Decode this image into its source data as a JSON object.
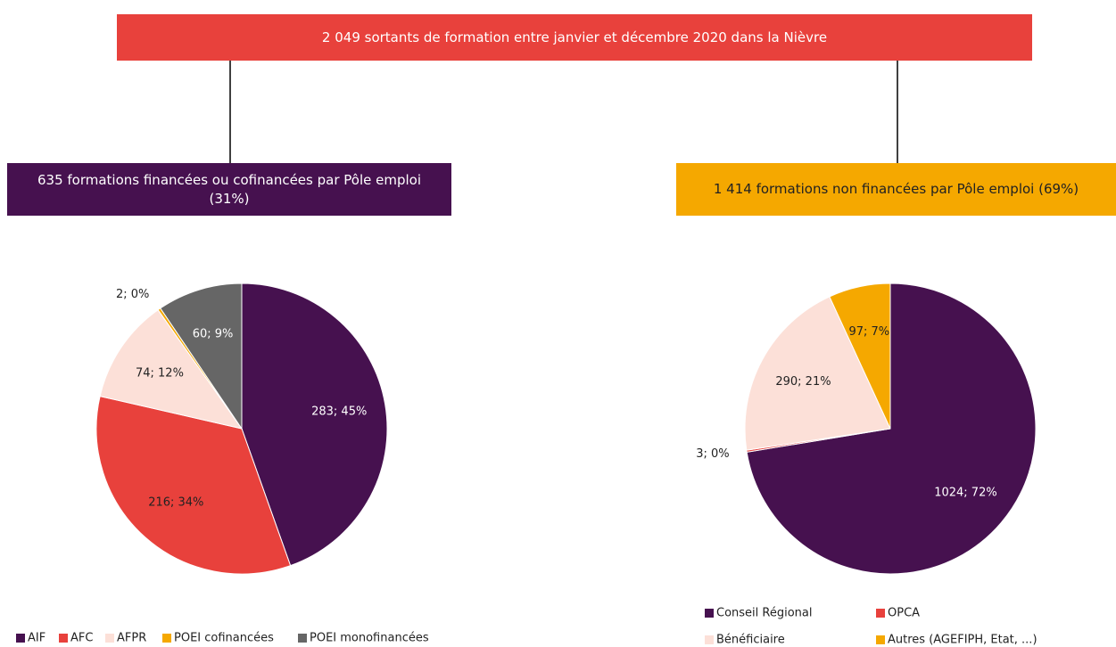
{
  "header": {
    "title": "2 049 sortants de formation entre janvier et décembre 2020 dans la Nièvre",
    "left_box": "635 formations financées ou cofinancées par Pôle emploi (31%)",
    "right_box": "1 414 formations non financées par Pôle emploi (69%)"
  },
  "chart_data": [
    {
      "type": "pie",
      "categories": [
        "AIF",
        "AFC",
        "AFPR",
        "POEI cofinancées",
        "POEI monofinancées"
      ],
      "values": [
        283,
        216,
        74,
        2,
        60
      ],
      "value_labels": [
        "283; 45%",
        "216; 34%",
        "74; 12%",
        "2; 0%",
        "60; 9%"
      ],
      "colors": [
        "#46114f",
        "#e8413c",
        "#fce0d8",
        "#f5a800",
        "#666666"
      ]
    },
    {
      "type": "pie",
      "categories": [
        "Conseil Régional",
        "OPCA",
        "Bénéficiaire",
        "Autres (AGEFIPH, Etat, ...)"
      ],
      "values": [
        1024,
        3,
        290,
        97
      ],
      "value_labels": [
        "1024; 72%",
        "3; 0%",
        "290; 21%",
        "97; 7%"
      ],
      "colors": [
        "#46114f",
        "#e8413c",
        "#fce0d8",
        "#f5a800"
      ]
    }
  ]
}
